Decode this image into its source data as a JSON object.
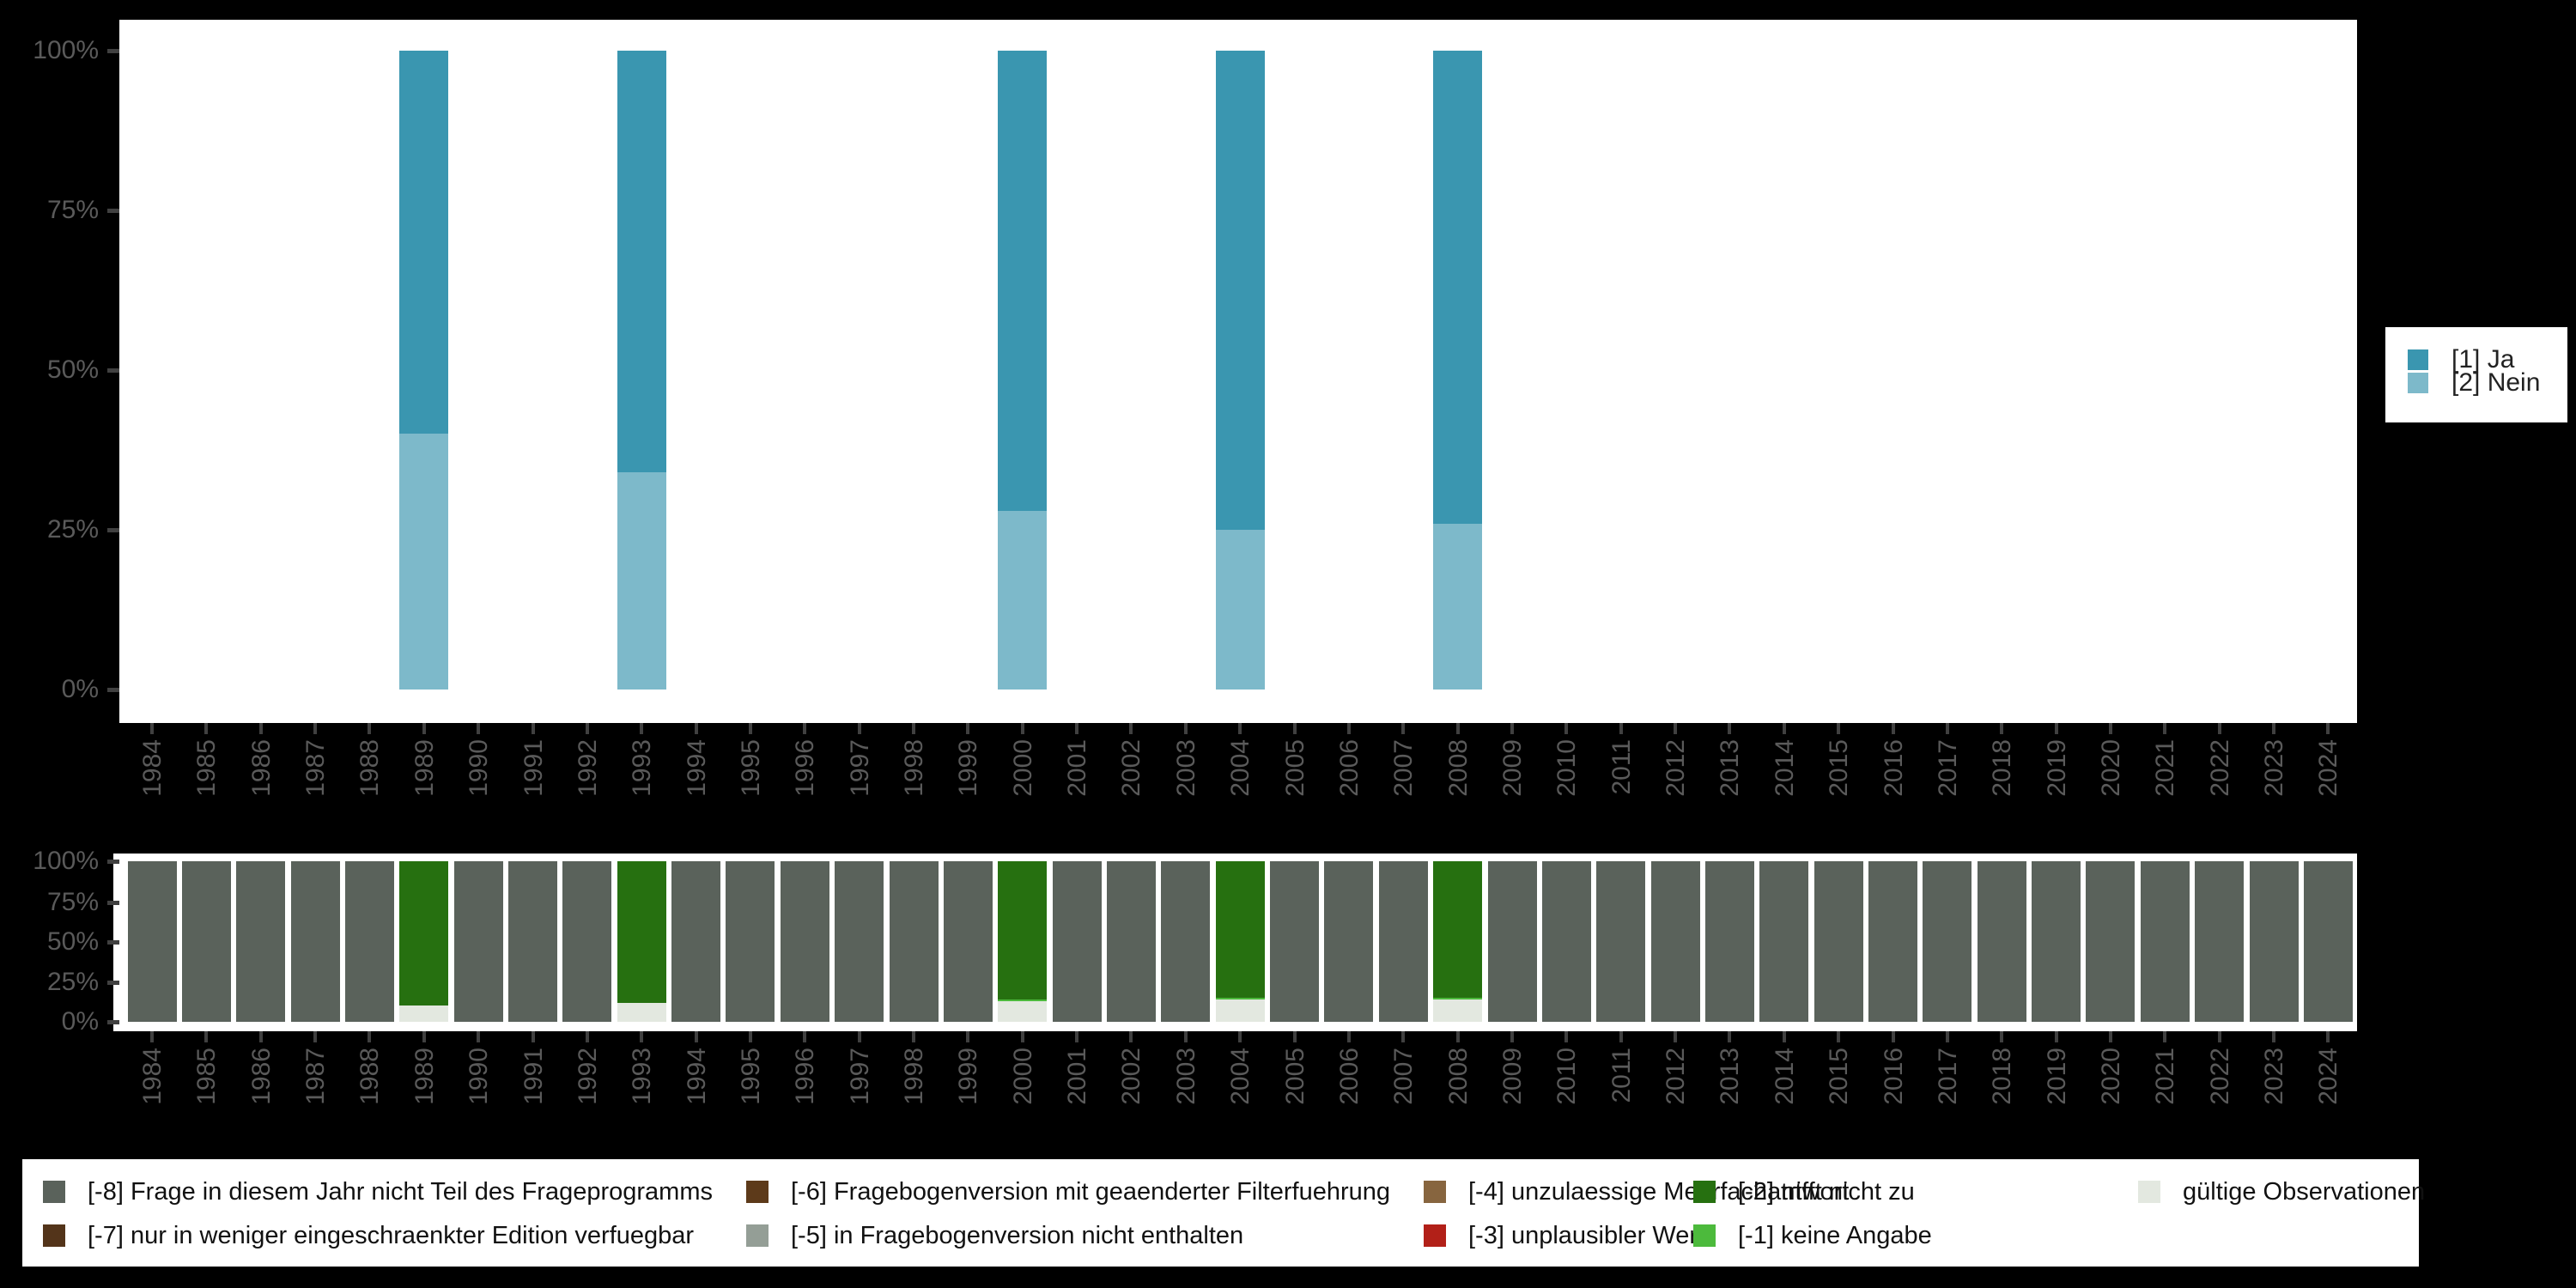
{
  "background": "#000000",
  "plot_background": "#ffffff",
  "axis": {
    "label_color": "#5a5a5a",
    "tick_color": "#404040",
    "y_tick_labels": [
      "0%",
      "25%",
      "50%",
      "75%",
      "100%"
    ],
    "x_tick_labels": [
      "1984",
      "1985",
      "1986",
      "1987",
      "1988",
      "1989",
      "1990",
      "1991",
      "1992",
      "1993",
      "1994",
      "1995",
      "1996",
      "1997",
      "1998",
      "1999",
      "2000",
      "2001",
      "2002",
      "2003",
      "2004",
      "2005",
      "2006",
      "2007",
      "2008",
      "2009",
      "2010",
      "2011",
      "2012",
      "2013",
      "2014",
      "2015",
      "2016",
      "2017",
      "2018",
      "2019",
      "2020",
      "2021",
      "2022",
      "2023",
      "2024"
    ]
  },
  "right_legend": {
    "items": [
      {
        "label": "[1] Ja",
        "color": "#3a96b0"
      },
      {
        "label": "[2] Nein",
        "color": "#7db9ca"
      }
    ]
  },
  "bottom_legend": {
    "rows": [
      [
        {
          "label": "[-8] Frage in diesem Jahr nicht Teil des Frageprogramms",
          "color": "#5a625b"
        },
        {
          "label": "[-6] Fragebogenversion mit geaenderter Filterfuehrung",
          "color": "#5d3a1a"
        },
        {
          "label": "[-4] unzulaessige Mehrfachantwort",
          "color": "#87653f"
        },
        {
          "label": "[-2] trifft nicht zu",
          "color": "#267010"
        },
        {
          "label": "gültige Observationen",
          "color": "#e3e8e0"
        }
      ],
      [
        {
          "label": "[-7] nur in weniger eingeschraenkter Edition verfuegbar",
          "color": "#53341a"
        },
        {
          "label": "[-5] in Fragebogenversion nicht enthalten",
          "color": "#949e96"
        },
        {
          "label": "[-3] unplausibler Wert",
          "color": "#b22018"
        },
        {
          "label": "[-1] keine Angabe",
          "color": "#4cba3c"
        }
      ]
    ]
  },
  "chart_data": [
    {
      "id": "answer-frequencies",
      "type": "bar",
      "stacked": true,
      "unit": "percent",
      "title": "",
      "xlabel": "",
      "ylabel": "",
      "ylim": [
        0,
        100
      ],
      "grid": false,
      "legend_position": "right",
      "x": [
        1984,
        1985,
        1986,
        1987,
        1988,
        1989,
        1990,
        1991,
        1992,
        1993,
        1994,
        1995,
        1996,
        1997,
        1998,
        1999,
        2000,
        2001,
        2002,
        2003,
        2004,
        2005,
        2006,
        2007,
        2008,
        2009,
        2010,
        2011,
        2012,
        2013,
        2014,
        2015,
        2016,
        2017,
        2018,
        2019,
        2020,
        2021,
        2022,
        2023,
        2024
      ],
      "series": [
        {
          "name": "[2] Nein",
          "color": "#7db9ca",
          "values": [
            0,
            0,
            0,
            0,
            0,
            40,
            0,
            0,
            0,
            34,
            0,
            0,
            0,
            0,
            0,
            0,
            28,
            0,
            0,
            0,
            25,
            0,
            0,
            0,
            26,
            0,
            0,
            0,
            0,
            0,
            0,
            0,
            0,
            0,
            0,
            0,
            0,
            0,
            0,
            0,
            0
          ]
        },
        {
          "name": "[1] Ja",
          "color": "#3a96b0",
          "values": [
            0,
            0,
            0,
            0,
            0,
            60,
            0,
            0,
            0,
            66,
            0,
            0,
            0,
            0,
            0,
            0,
            72,
            0,
            0,
            0,
            75,
            0,
            0,
            0,
            74,
            0,
            0,
            0,
            0,
            0,
            0,
            0,
            0,
            0,
            0,
            0,
            0,
            0,
            0,
            0,
            0
          ]
        }
      ]
    },
    {
      "id": "missing-values",
      "type": "bar",
      "stacked": true,
      "unit": "percent",
      "title": "",
      "xlabel": "",
      "ylabel": "",
      "ylim": [
        0,
        100
      ],
      "grid": false,
      "legend_position": "bottom",
      "x": [
        1984,
        1985,
        1986,
        1987,
        1988,
        1989,
        1990,
        1991,
        1992,
        1993,
        1994,
        1995,
        1996,
        1997,
        1998,
        1999,
        2000,
        2001,
        2002,
        2003,
        2004,
        2005,
        2006,
        2007,
        2008,
        2009,
        2010,
        2011,
        2012,
        2013,
        2014,
        2015,
        2016,
        2017,
        2018,
        2019,
        2020,
        2021,
        2022,
        2023,
        2024
      ],
      "series": [
        {
          "name": "gültige Observationen",
          "color": "#e3e8e0",
          "values": [
            0,
            0,
            0,
            0,
            0,
            10,
            0,
            0,
            0,
            12,
            0,
            0,
            0,
            0,
            0,
            0,
            13,
            0,
            0,
            0,
            14,
            0,
            0,
            0,
            14,
            0,
            0,
            0,
            0,
            0,
            0,
            0,
            0,
            0,
            0,
            0,
            0,
            0,
            0,
            0,
            0
          ]
        },
        {
          "name": "[-1] keine Angabe",
          "color": "#4cba3c",
          "values": [
            0,
            0,
            0,
            0,
            0,
            0,
            0,
            0,
            0,
            0,
            0,
            0,
            0,
            0,
            0,
            0,
            1,
            0,
            0,
            0,
            1,
            0,
            0,
            0,
            1,
            0,
            0,
            0,
            0,
            0,
            0,
            0,
            0,
            0,
            0,
            0,
            0,
            0,
            0,
            0,
            0
          ]
        },
        {
          "name": "[-2] trifft nicht zu",
          "color": "#267010",
          "values": [
            0,
            0,
            0,
            0,
            0,
            90,
            0,
            0,
            0,
            88,
            0,
            0,
            0,
            0,
            0,
            0,
            86,
            0,
            0,
            0,
            85,
            0,
            0,
            0,
            85,
            0,
            0,
            0,
            0,
            0,
            0,
            0,
            0,
            0,
            0,
            0,
            0,
            0,
            0,
            0,
            0
          ]
        },
        {
          "name": "[-8] Frage in diesem Jahr nicht Teil des Frageprogramms",
          "color": "#5a625b",
          "values": [
            100,
            100,
            100,
            100,
            100,
            0,
            100,
            100,
            100,
            0,
            100,
            100,
            100,
            100,
            100,
            100,
            0,
            100,
            100,
            100,
            0,
            100,
            100,
            100,
            0,
            100,
            100,
            100,
            100,
            100,
            100,
            100,
            100,
            100,
            100,
            100,
            100,
            100,
            100,
            100,
            100
          ]
        }
      ]
    }
  ]
}
